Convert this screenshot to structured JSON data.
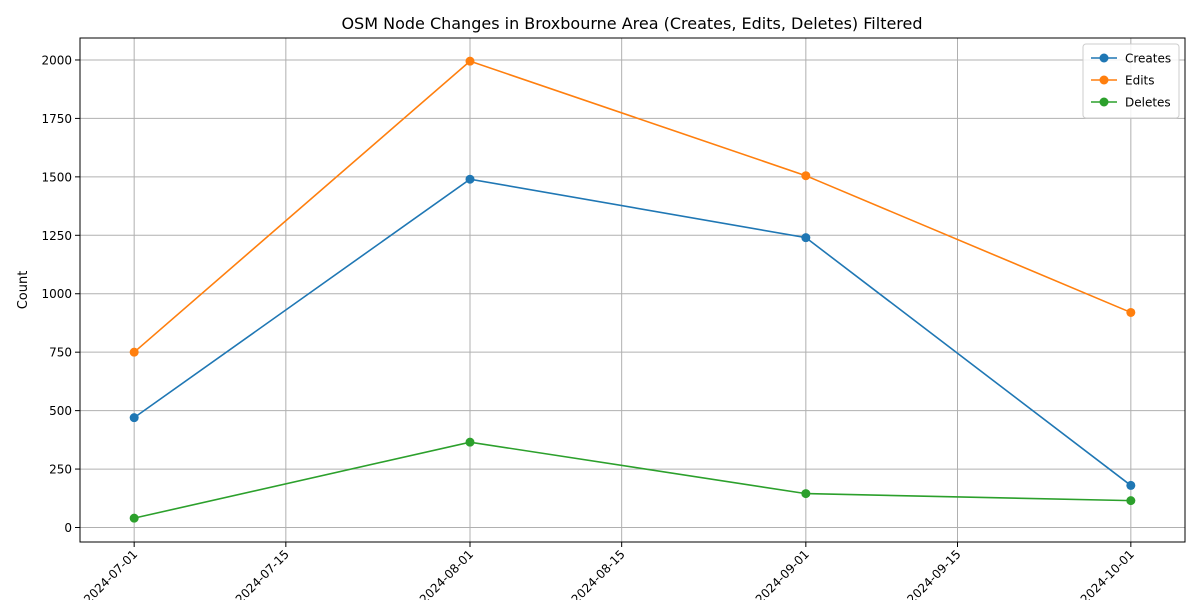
{
  "chart_data": {
    "type": "line",
    "title": "OSM Node Changes in Broxbourne Area (Creates, Edits, Deletes) Filtered",
    "xlabel": "",
    "ylabel": "Count",
    "x": [
      "2024-07-01",
      "2024-08-01",
      "2024-09-01",
      "2024-10-01"
    ],
    "x_ticks": [
      "2024-07-01",
      "2024-07-15",
      "2024-08-01",
      "2024-08-15",
      "2024-09-01",
      "2024-09-15",
      "2024-10-01"
    ],
    "x_tick_labels": [
      "2024-07-01",
      "2024-07-15",
      "2024-08-01",
      "2024-08-15",
      "2024-09-01",
      "2024-09-15",
      "2024-10-01"
    ],
    "xlim": [
      "2024-06-26",
      "2024-10-06"
    ],
    "y_ticks": [
      0,
      250,
      500,
      750,
      1000,
      1250,
      1500,
      1750,
      2000
    ],
    "y_tick_labels": [
      "0",
      "250",
      "500",
      "750",
      "1000",
      "1250",
      "1500",
      "1750",
      "2000"
    ],
    "ylim": [
      -62,
      2094
    ],
    "grid": true,
    "legend_position": "top-right",
    "series": [
      {
        "name": "Creates",
        "color": "#1f77b4",
        "values": [
          470,
          1490,
          1240,
          180
        ]
      },
      {
        "name": "Edits",
        "color": "#ff7f0e",
        "values": [
          750,
          1995,
          1505,
          920
        ]
      },
      {
        "name": "Deletes",
        "color": "#2ca02c",
        "values": [
          40,
          365,
          145,
          115
        ]
      }
    ]
  }
}
